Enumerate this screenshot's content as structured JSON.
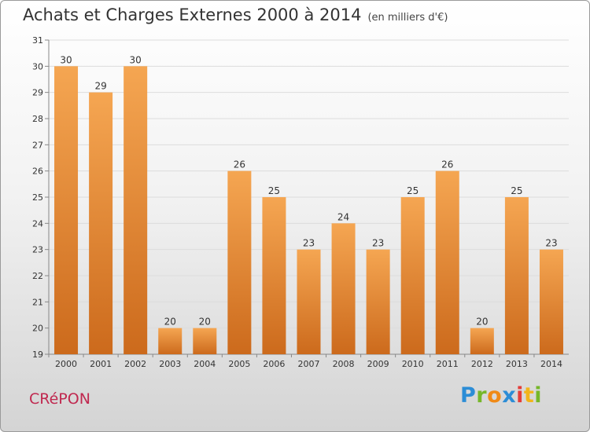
{
  "header": {
    "title": "Achats et Charges Externes 2000 à 2014",
    "unit": "(en milliers d'€)"
  },
  "footer": {
    "commune": "CRéPON",
    "brand_letters": [
      "P",
      "r",
      "o",
      "x",
      "i",
      "t",
      "i"
    ]
  },
  "colors": {
    "bar_light": "#f5a652",
    "bar_dark": "#cc6a1c",
    "commune": "#c0284f"
  },
  "chart_data": {
    "type": "bar",
    "categories": [
      "2000",
      "2001",
      "2002",
      "2003",
      "2004",
      "2005",
      "2006",
      "2007",
      "2008",
      "2009",
      "2010",
      "2011",
      "2012",
      "2013",
      "2014"
    ],
    "values": [
      30,
      29,
      30,
      20,
      20,
      26,
      25,
      23,
      24,
      23,
      25,
      26,
      20,
      25,
      23
    ],
    "title": "Achats et Charges Externes 2000 à 2014",
    "ylim": [
      19,
      31
    ],
    "yticks": [
      19,
      20,
      21,
      22,
      23,
      24,
      25,
      26,
      27,
      28,
      29,
      30,
      31
    ],
    "grid": true,
    "legend": "none"
  }
}
